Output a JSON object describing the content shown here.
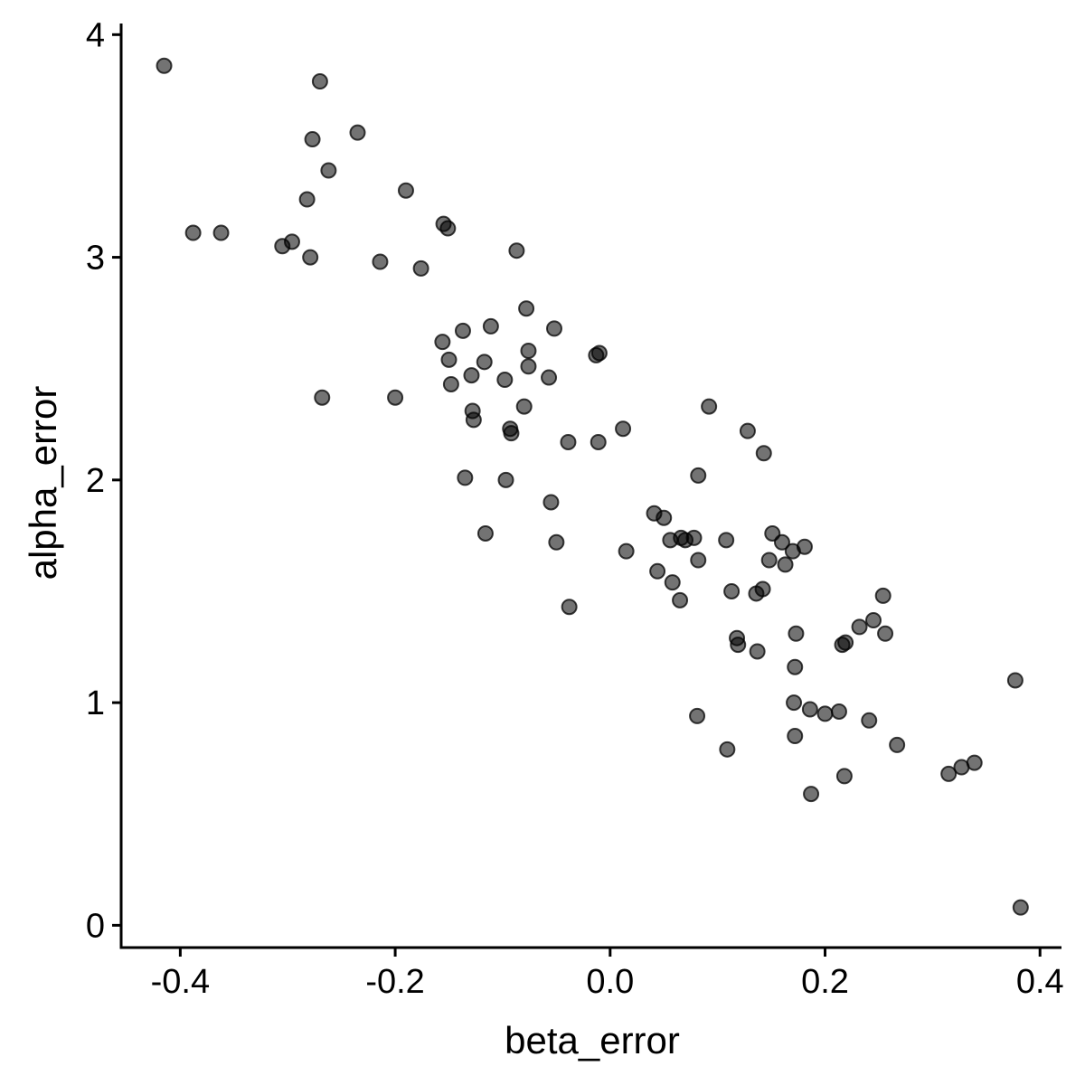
{
  "chart_data": {
    "type": "scatter",
    "title": "",
    "xlabel": "beta_error",
    "ylabel": "alpha_error",
    "xlim": [
      -0.455,
      0.42
    ],
    "ylim": [
      -0.1,
      4.05
    ],
    "xticks": [
      -0.4,
      -0.2,
      0.0,
      0.2,
      0.4
    ],
    "xtick_labels": [
      "-0.4",
      "-0.2",
      "0.0",
      "0.2",
      "0.4"
    ],
    "yticks": [
      0,
      1,
      2,
      3,
      4
    ],
    "ytick_labels": [
      "0",
      "1",
      "2",
      "3",
      "4"
    ],
    "grid": false,
    "legend": "none",
    "point_color": "#000000",
    "series": [
      {
        "x": [
          -0.415,
          -0.27,
          -0.235,
          -0.277,
          -0.262,
          -0.19,
          -0.282,
          -0.388,
          -0.362,
          -0.296,
          -0.305,
          -0.279,
          -0.155,
          -0.151,
          -0.214,
          -0.176,
          -0.087,
          -0.078,
          -0.156,
          -0.137,
          -0.111,
          -0.052,
          -0.076,
          -0.15,
          -0.117,
          -0.013,
          -0.01,
          -0.129,
          -0.148,
          -0.098,
          -0.076,
          -0.057,
          -0.268,
          -0.2,
          -0.128,
          -0.127,
          -0.08,
          -0.093,
          -0.092,
          0.012,
          -0.039,
          -0.011,
          -0.135,
          -0.097,
          0.092,
          0.128,
          0.143,
          0.082,
          -0.055,
          0.041,
          0.05,
          -0.116,
          -0.05,
          0.056,
          0.066,
          0.07,
          0.078,
          0.108,
          0.015,
          0.151,
          0.16,
          0.17,
          0.181,
          0.148,
          0.163,
          0.044,
          0.058,
          0.082,
          -0.038,
          0.065,
          0.113,
          0.136,
          0.142,
          0.254,
          0.245,
          0.232,
          0.256,
          0.173,
          0.118,
          0.119,
          0.216,
          0.219,
          0.137,
          0.172,
          0.377,
          0.171,
          0.186,
          0.2,
          0.213,
          0.081,
          0.241,
          0.172,
          0.109,
          0.267,
          0.339,
          0.327,
          0.315,
          0.218,
          0.187,
          0.382
        ],
        "y": [
          3.86,
          3.79,
          3.56,
          3.53,
          3.39,
          3.3,
          3.26,
          3.11,
          3.11,
          3.07,
          3.05,
          3.0,
          3.15,
          3.13,
          2.98,
          2.95,
          3.03,
          2.77,
          2.62,
          2.67,
          2.69,
          2.68,
          2.58,
          2.54,
          2.53,
          2.56,
          2.57,
          2.47,
          2.43,
          2.45,
          2.51,
          2.46,
          2.37,
          2.37,
          2.31,
          2.27,
          2.33,
          2.23,
          2.21,
          2.23,
          2.17,
          2.17,
          2.01,
          2.0,
          2.33,
          2.22,
          2.12,
          2.02,
          1.9,
          1.85,
          1.83,
          1.76,
          1.72,
          1.73,
          1.74,
          1.73,
          1.74,
          1.73,
          1.68,
          1.76,
          1.72,
          1.68,
          1.7,
          1.64,
          1.62,
          1.59,
          1.54,
          1.64,
          1.43,
          1.46,
          1.5,
          1.49,
          1.51,
          1.48,
          1.37,
          1.34,
          1.31,
          1.31,
          1.29,
          1.26,
          1.26,
          1.27,
          1.23,
          1.16,
          1.1,
          1.0,
          0.97,
          0.95,
          0.96,
          0.94,
          0.92,
          0.85,
          0.79,
          0.81,
          0.73,
          0.71,
          0.68,
          0.67,
          0.59,
          0.08
        ]
      }
    ]
  }
}
